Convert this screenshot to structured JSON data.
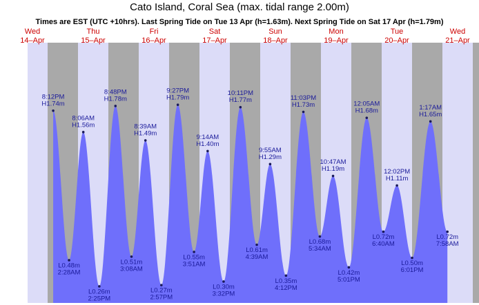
{
  "chart_data": {
    "type": "tide",
    "title": "Cato Island, Coral Sea (max. tidal range 2.00m)",
    "subtitle": "Times are EST (UTC +10hrs). Last Spring Tide on Tue 13 Apr (h=1.63m). Next Spring Tide on Sat 17 Apr (h=1.79m)",
    "days": [
      {
        "day": "Wed",
        "date": "14–Apr"
      },
      {
        "day": "Thu",
        "date": "15–Apr"
      },
      {
        "day": "Fri",
        "date": "16–Apr"
      },
      {
        "day": "Sat",
        "date": "17–Apr"
      },
      {
        "day": "Sun",
        "date": "18–Apr"
      },
      {
        "day": "Mon",
        "date": "19–Apr"
      },
      {
        "day": "Tue",
        "date": "20–Apr"
      },
      {
        "day": "Wed",
        "date": "21–Apr"
      }
    ],
    "times": [
      "8:12PM",
      "2:28AM",
      "8:06AM",
      "2:25PM",
      "8:48PM",
      "3:08AM",
      "8:39AM",
      "2:57PM",
      "9:27PM",
      "3:51AM",
      "9:14AM",
      "3:32PM",
      "10:11PM",
      "4:39AM",
      "9:55AM",
      "4:12PM",
      "11:03PM",
      "5:34AM",
      "10:47AM",
      "5:01PM",
      "12:05AM",
      "6:40AM",
      "12:02PM",
      "6:01PM",
      "1:17AM",
      "7:58AM"
    ],
    "values": [
      1.74,
      0.48,
      1.56,
      0.26,
      1.78,
      0.51,
      1.49,
      0.27,
      1.79,
      0.55,
      1.4,
      0.3,
      1.77,
      0.61,
      1.29,
      0.35,
      1.73,
      0.68,
      1.19,
      0.42,
      1.68,
      0.72,
      1.11,
      0.5,
      1.65,
      0.72
    ],
    "value_labels": [
      "H1.74m",
      "L0.48m",
      "H1.56m",
      "L0.26m",
      "H1.78m",
      "L0.51m",
      "H1.49m",
      "L0.27m",
      "H1.79m",
      "L0.55m",
      "H1.40m",
      "L0.30m",
      "H1.77m",
      "L0.61m",
      "H1.29m",
      "L0.35m",
      "H1.73m",
      "L0.68m",
      "H1.19m",
      "L0.42m",
      "H1.68m",
      "L0.72m",
      "H1.11m",
      "L0.50m",
      "H1.65m",
      "L0.72m"
    ],
    "color": "#6f6ffb",
    "ylim": [
      0.12,
      2.0
    ]
  }
}
